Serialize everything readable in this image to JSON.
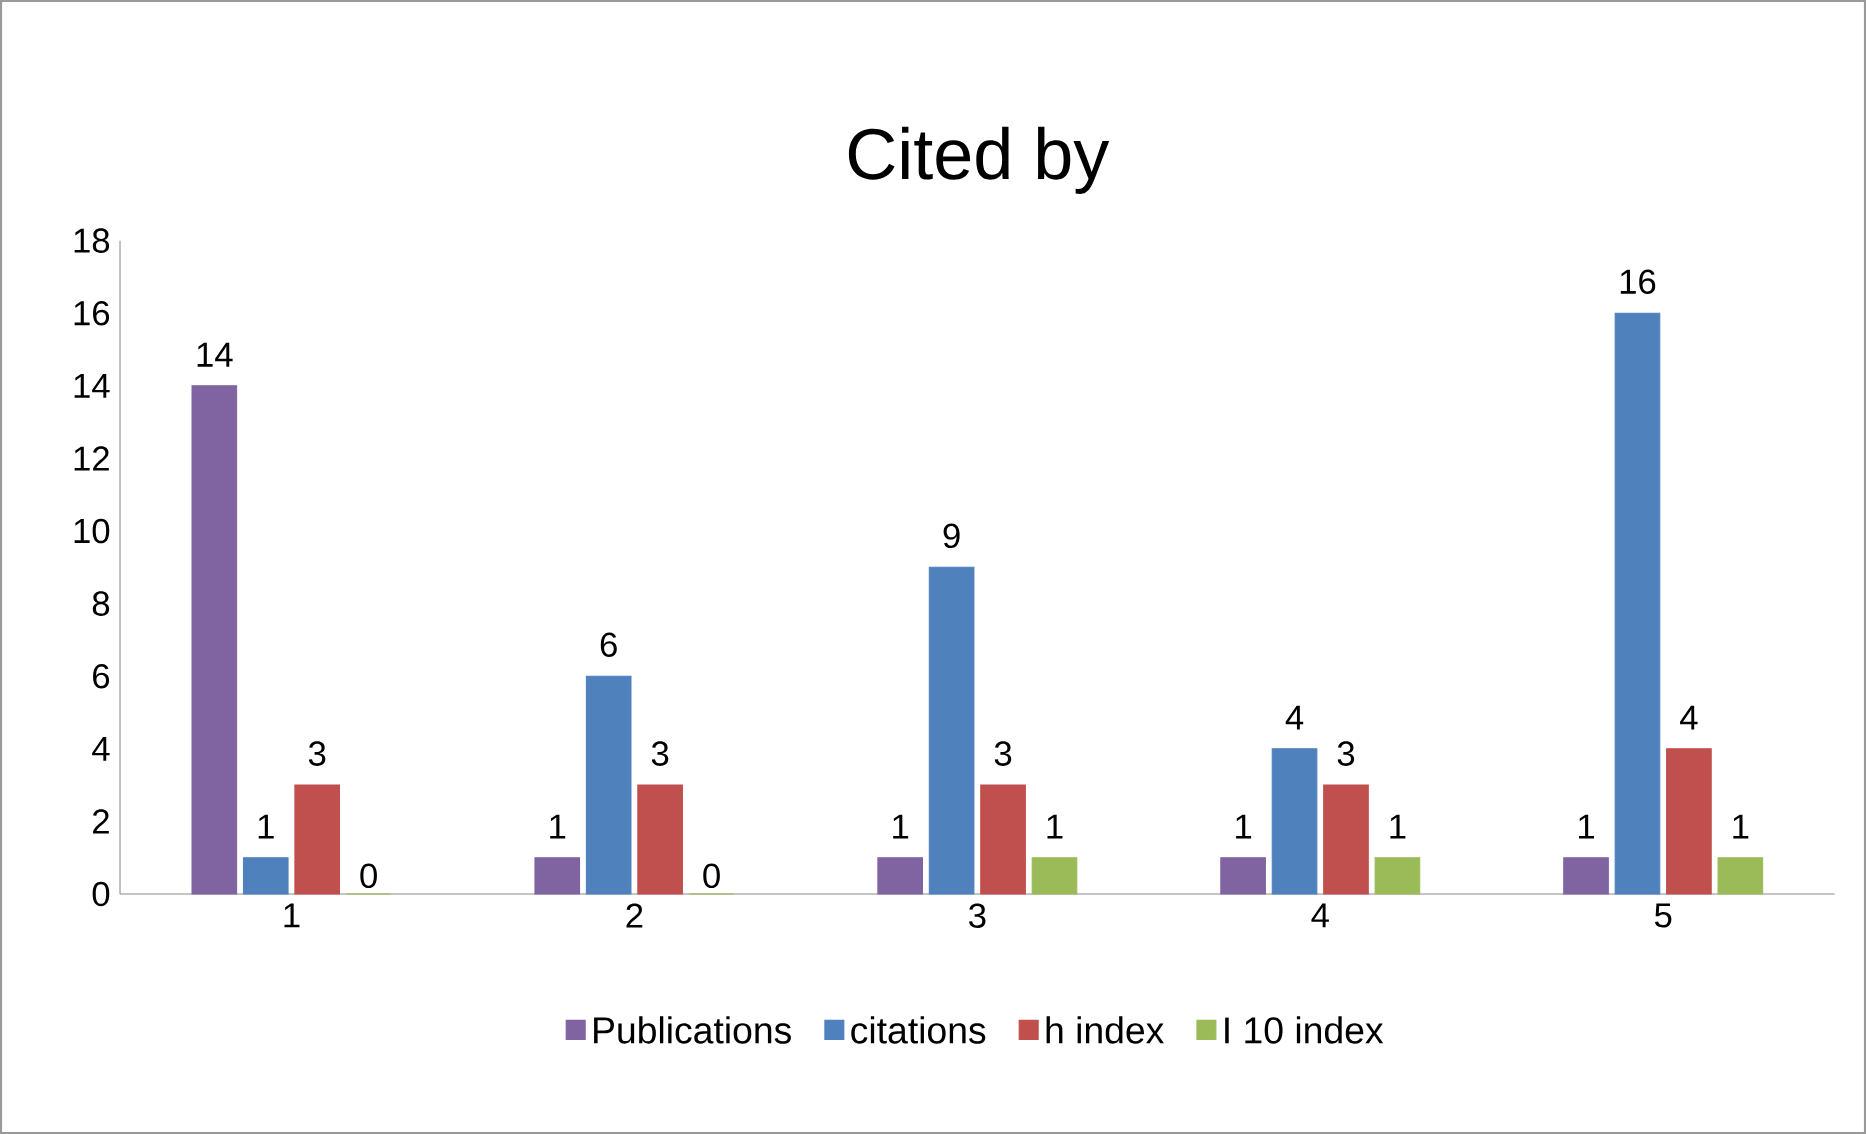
{
  "chart_data": {
    "type": "bar",
    "title": "Cited by",
    "categories": [
      "1",
      "2",
      "3",
      "4",
      "5"
    ],
    "series": [
      {
        "name": "Publications",
        "color": "#8064a2",
        "values": [
          14,
          1,
          1,
          1,
          1
        ]
      },
      {
        "name": "citations",
        "color": "#4f81bd",
        "values": [
          1,
          6,
          9,
          4,
          16
        ]
      },
      {
        "name": "h index",
        "color": "#c0504d",
        "values": [
          3,
          3,
          3,
          3,
          4
        ]
      },
      {
        "name": "I 10 index",
        "color": "#9bbb59",
        "values": [
          0,
          0,
          1,
          1,
          1
        ]
      }
    ],
    "ylim": [
      0,
      18
    ],
    "yticks": [
      0,
      2,
      4,
      6,
      8,
      10,
      12,
      14,
      16,
      18
    ],
    "data_labels": true,
    "legend": "bottom",
    "grid": false
  }
}
